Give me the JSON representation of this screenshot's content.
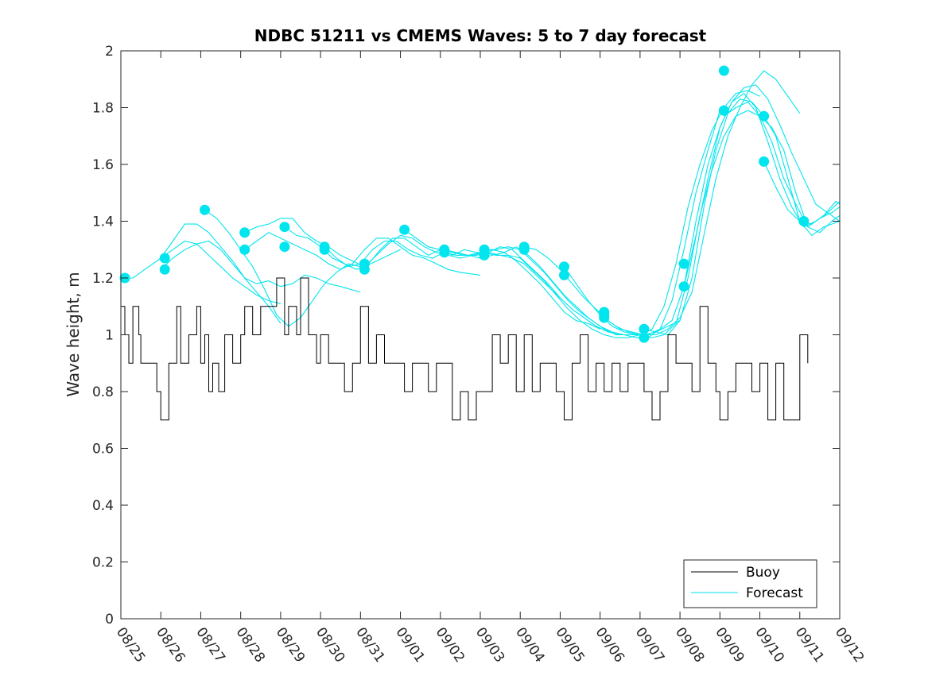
{
  "chart_data": {
    "type": "line",
    "title": "NDBC 51211 vs CMEMS Waves: 5 to 7 day forecast",
    "xlabel": "",
    "ylabel": "Wave height, m",
    "xlim": [
      0,
      18
    ],
    "ylim": [
      0,
      2
    ],
    "x_tick_labels": [
      "08/25",
      "08/26",
      "08/27",
      "08/28",
      "08/29",
      "08/30",
      "08/31",
      "09/01",
      "09/02",
      "09/03",
      "09/04",
      "09/05",
      "09/06",
      "09/07",
      "09/08",
      "09/09",
      "09/10",
      "09/11",
      "09/12"
    ],
    "y_ticks": [
      0,
      0.2,
      0.4,
      0.6,
      0.8,
      1,
      1.2,
      1.4,
      1.6,
      1.8,
      2
    ],
    "y_tick_labels": [
      "0",
      "0.2",
      "0.4",
      "0.6",
      "0.8",
      "1",
      "1.2",
      "1.4",
      "1.6",
      "1.8",
      "2"
    ],
    "grid": false,
    "legend": {
      "position": "bottom-right",
      "entries": [
        {
          "name": "Buoy",
          "color": "#000000"
        },
        {
          "name": "Forecast",
          "color": "#00e5ee"
        }
      ]
    },
    "colors": {
      "buoy": "#000000",
      "forecast": "#00e5ee",
      "marker": "#00e5ee"
    },
    "buoy": {
      "name": "Buoy",
      "x": [
        0,
        0.1,
        0.2,
        0.3,
        0.45,
        0.5,
        0.7,
        0.9,
        1.0,
        1.2,
        1.4,
        1.5,
        1.7,
        1.9,
        2.0,
        2.1,
        2.2,
        2.3,
        2.45,
        2.6,
        2.8,
        3.0,
        3.1,
        3.3,
        3.5,
        3.7,
        3.9,
        4.1,
        4.2,
        4.4,
        4.5,
        4.7,
        4.9,
        5.0,
        5.2,
        5.4,
        5.6,
        5.8,
        6.0,
        6.2,
        6.4,
        6.6,
        6.8,
        6.9,
        7.1,
        7.3,
        7.5,
        7.7,
        7.9,
        8.1,
        8.3,
        8.5,
        8.7,
        8.9,
        9.1,
        9.3,
        9.5,
        9.7,
        9.9,
        10.1,
        10.3,
        10.5,
        10.7,
        10.9,
        11.1,
        11.3,
        11.5,
        11.7,
        11.9,
        12.1,
        12.3,
        12.5,
        12.7,
        12.9,
        13.1,
        13.3,
        13.5,
        13.7,
        13.9,
        14.1,
        14.3,
        14.5,
        14.7,
        14.9,
        15.0,
        15.2,
        15.4,
        15.6,
        15.8,
        16.0,
        16.2,
        16.4,
        16.6,
        16.8,
        17.0,
        17.2
      ],
      "y": [
        1.1,
        1.0,
        0.9,
        1.1,
        1.0,
        0.9,
        0.9,
        0.8,
        0.7,
        0.9,
        1.1,
        0.9,
        1.0,
        1.1,
        0.9,
        1.0,
        0.8,
        0.9,
        0.8,
        1.0,
        0.9,
        1.0,
        1.1,
        1.0,
        1.1,
        1.1,
        1.2,
        1.0,
        1.1,
        1.0,
        1.2,
        1.0,
        0.9,
        1.0,
        0.9,
        0.9,
        0.8,
        0.9,
        1.1,
        0.9,
        1.0,
        0.9,
        0.9,
        0.9,
        0.8,
        0.9,
        0.9,
        0.8,
        0.9,
        0.9,
        0.7,
        0.8,
        0.7,
        0.8,
        0.8,
        1.0,
        0.9,
        1.0,
        0.8,
        1.0,
        0.8,
        0.9,
        0.9,
        0.8,
        0.7,
        0.9,
        1.0,
        0.8,
        0.9,
        0.8,
        0.9,
        0.8,
        0.9,
        0.9,
        0.8,
        0.7,
        0.8,
        1.0,
        0.9,
        0.9,
        0.8,
        1.1,
        0.9,
        0.8,
        0.7,
        0.8,
        0.9,
        0.9,
        0.8,
        0.9,
        0.7,
        0.9,
        0.7,
        0.7,
        1.0,
        0.9
      ]
    },
    "forecasts": [
      {
        "name": "Forecast",
        "x": [
          0,
          0.3,
          0.6,
          1.0,
          1.3,
          1.6,
          1.9,
          2.2,
          2.5,
          2.8,
          3.1,
          3.4,
          3.7,
          4.0
        ],
        "y": [
          1.2,
          1.2,
          1.23,
          1.27,
          1.3,
          1.33,
          1.32,
          1.28,
          1.24,
          1.2,
          1.17,
          1.14,
          1.12,
          1.11
        ]
      },
      {
        "name": "Forecast",
        "x": [
          1.0,
          1.3,
          1.6,
          1.9,
          2.2,
          2.5,
          2.8,
          3.1,
          3.4,
          3.7,
          4.0,
          4.3,
          4.6,
          4.9,
          5.2,
          5.5,
          6.0
        ],
        "y": [
          1.23,
          1.27,
          1.3,
          1.32,
          1.33,
          1.3,
          1.25,
          1.2,
          1.18,
          1.19,
          1.17,
          1.18,
          1.21,
          1.2,
          1.18,
          1.17,
          1.15
        ]
      },
      {
        "name": "Forecast",
        "x": [
          1.0,
          1.3,
          1.6,
          1.9,
          2.2,
          2.5,
          2.8,
          3.1,
          3.4,
          3.7,
          4.0
        ],
        "y": [
          1.27,
          1.33,
          1.39,
          1.39,
          1.36,
          1.31,
          1.26,
          1.2,
          1.15,
          1.1,
          1.04
        ]
      },
      {
        "name": "Forecast",
        "x": [
          2.1,
          2.4,
          2.7,
          3.0,
          3.3,
          3.6,
          3.9,
          4.2,
          4.5,
          4.8,
          5.1,
          5.4,
          5.7,
          6.0
        ],
        "y": [
          1.44,
          1.41,
          1.36,
          1.3,
          1.24,
          1.16,
          1.07,
          1.03,
          1.06,
          1.12,
          1.18,
          1.22,
          1.25,
          1.24
        ]
      },
      {
        "name": "Forecast",
        "x": [
          3.1,
          3.4,
          3.7,
          4.0,
          4.3,
          4.6,
          4.9,
          5.2,
          5.5,
          5.8,
          6.1,
          6.4,
          6.7,
          7.0
        ],
        "y": [
          1.36,
          1.38,
          1.39,
          1.41,
          1.41,
          1.36,
          1.33,
          1.31,
          1.28,
          1.26,
          1.24,
          1.26,
          1.28,
          1.3
        ]
      },
      {
        "name": "Forecast",
        "x": [
          3.1,
          3.4,
          3.7,
          4.0,
          4.3,
          4.6,
          4.9,
          5.2,
          5.5,
          5.8,
          6.1,
          6.4,
          6.7,
          7.0,
          7.3,
          7.6,
          7.9,
          8.2,
          8.5,
          9.0
        ],
        "y": [
          1.3,
          1.33,
          1.36,
          1.34,
          1.32,
          1.3,
          1.28,
          1.25,
          1.23,
          1.25,
          1.3,
          1.34,
          1.34,
          1.31,
          1.28,
          1.27,
          1.25,
          1.23,
          1.22,
          1.21
        ]
      },
      {
        "name": "Forecast",
        "x": [
          4.1,
          4.4,
          4.7,
          5.0,
          5.3,
          5.6,
          5.9,
          6.2,
          6.5,
          6.8,
          7.1,
          7.4,
          7.7,
          8.0,
          8.3,
          8.6,
          8.9,
          9.2,
          9.5,
          9.8,
          10.1,
          10.4,
          10.7,
          11.0
        ],
        "y": [
          1.38,
          1.35,
          1.34,
          1.31,
          1.27,
          1.25,
          1.23,
          1.25,
          1.3,
          1.34,
          1.34,
          1.31,
          1.28,
          1.3,
          1.28,
          1.3,
          1.29,
          1.29,
          1.31,
          1.3,
          1.26,
          1.22,
          1.18,
          1.13
        ]
      },
      {
        "name": "Forecast",
        "x": [
          5.1,
          5.4,
          5.7,
          6.0,
          6.3,
          6.6,
          6.9,
          7.2,
          7.5,
          7.8,
          8.1,
          8.4,
          8.7,
          9.0,
          9.3,
          9.6,
          9.9,
          10.2,
          10.5,
          10.8,
          11.1,
          11.4,
          11.7,
          12.0
        ],
        "y": [
          1.31,
          1.27,
          1.24,
          1.25,
          1.3,
          1.33,
          1.33,
          1.3,
          1.28,
          1.27,
          1.29,
          1.28,
          1.28,
          1.29,
          1.3,
          1.29,
          1.26,
          1.22,
          1.18,
          1.13,
          1.08,
          1.05,
          1.04,
          1.02
        ]
      },
      {
        "name": "Forecast",
        "x": [
          6.1,
          6.4,
          6.7,
          7.0,
          7.3,
          7.6,
          7.9,
          8.2,
          8.5,
          8.8,
          9.1,
          9.4,
          9.7,
          10.0,
          10.3,
          10.6,
          10.9,
          11.2,
          11.5,
          11.8,
          12.1,
          12.4,
          12.7,
          13.0
        ],
        "y": [
          1.24,
          1.28,
          1.32,
          1.35,
          1.34,
          1.31,
          1.29,
          1.28,
          1.27,
          1.28,
          1.29,
          1.28,
          1.28,
          1.27,
          1.23,
          1.19,
          1.14,
          1.09,
          1.05,
          1.02,
          1.0,
          0.99,
          0.99,
          1.0
        ]
      },
      {
        "name": "Forecast",
        "x": [
          7.1,
          7.4,
          7.7,
          8.0,
          8.3,
          8.6,
          8.9,
          9.2,
          9.5,
          9.8,
          10.1,
          10.4,
          10.7,
          11.0,
          11.3,
          11.6,
          11.9,
          12.2,
          12.5,
          12.8,
          13.1,
          13.4,
          13.7,
          14.0
        ],
        "y": [
          1.37,
          1.34,
          1.31,
          1.3,
          1.29,
          1.28,
          1.28,
          1.29,
          1.28,
          1.27,
          1.25,
          1.21,
          1.17,
          1.13,
          1.09,
          1.06,
          1.03,
          1.01,
          1.0,
          1.0,
          1.0,
          1.01,
          1.03,
          1.05
        ]
      },
      {
        "name": "Forecast",
        "x": [
          8.1,
          8.4,
          8.7,
          9.0,
          9.3,
          9.6,
          9.9,
          10.2,
          10.5,
          10.8,
          11.1,
          11.4,
          11.7,
          12.0,
          12.3,
          12.6,
          12.9,
          13.2,
          13.5,
          13.8,
          14.1,
          14.4,
          14.7,
          15.0
        ],
        "y": [
          1.3,
          1.29,
          1.28,
          1.27,
          1.28,
          1.29,
          1.31,
          1.28,
          1.24,
          1.19,
          1.14,
          1.1,
          1.06,
          1.03,
          1.01,
          1.0,
          0.99,
          0.99,
          1.02,
          1.12,
          1.3,
          1.5,
          1.65,
          1.79
        ]
      },
      {
        "name": "Forecast",
        "x": [
          9.1,
          9.4,
          9.7,
          10.0,
          10.3,
          10.6,
          10.9,
          11.2,
          11.5,
          11.8,
          12.1,
          12.4,
          12.7,
          13.0,
          13.3,
          13.6,
          13.9,
          14.2,
          14.5,
          14.8,
          15.1,
          15.4,
          15.7,
          16.0
        ],
        "y": [
          1.3,
          1.3,
          1.31,
          1.3,
          1.26,
          1.22,
          1.17,
          1.12,
          1.08,
          1.05,
          1.02,
          1.0,
          1.0,
          1.0,
          1.02,
          1.1,
          1.25,
          1.45,
          1.6,
          1.72,
          1.8,
          1.85,
          1.86,
          1.84
        ]
      },
      {
        "name": "Forecast",
        "x": [
          10.1,
          10.4,
          10.7,
          11.0,
          11.3,
          11.6,
          11.9,
          12.2,
          12.5,
          12.8,
          13.1,
          13.4,
          13.7,
          14.0,
          14.3,
          14.6,
          14.9,
          15.2,
          15.5,
          15.8,
          16.1,
          16.4,
          16.7,
          17.0
        ],
        "y": [
          1.31,
          1.3,
          1.27,
          1.23,
          1.18,
          1.13,
          1.09,
          1.05,
          1.02,
          1.01,
          1.0,
          1.0,
          1.02,
          1.06,
          1.15,
          1.35,
          1.55,
          1.7,
          1.8,
          1.88,
          1.93,
          1.9,
          1.84,
          1.78
        ]
      },
      {
        "name": "Forecast",
        "x": [
          11.1,
          11.4,
          11.7,
          12.0,
          12.3,
          12.6,
          12.9,
          13.2,
          13.5,
          13.8,
          14.1,
          14.4,
          14.7,
          15.0,
          15.3,
          15.6,
          15.9,
          16.2,
          16.5,
          16.8,
          17.1,
          17.4,
          17.7,
          18.0
        ],
        "y": [
          1.24,
          1.18,
          1.12,
          1.07,
          1.03,
          1.01,
          1.0,
          1.0,
          1.02,
          1.05,
          1.17,
          1.4,
          1.6,
          1.73,
          1.82,
          1.87,
          1.88,
          1.83,
          1.74,
          1.64,
          1.55,
          1.46,
          1.43,
          1.47
        ]
      },
      {
        "name": "Forecast",
        "x": [
          12.1,
          12.4,
          12.7,
          13.0,
          13.3,
          13.6,
          13.9,
          14.2,
          14.5,
          14.8,
          15.1,
          15.4,
          15.7,
          16.0,
          16.3,
          16.6,
          16.9,
          17.2,
          17.5,
          17.8,
          18.0
        ],
        "y": [
          1.06,
          1.03,
          1.01,
          1.0,
          0.99,
          1.0,
          1.04,
          1.2,
          1.42,
          1.58,
          1.7,
          1.77,
          1.79,
          1.77,
          1.73,
          1.65,
          1.5,
          1.38,
          1.36,
          1.4,
          1.42
        ]
      },
      {
        "name": "Forecast",
        "x": [
          13.1,
          13.4,
          13.7,
          14.0,
          14.3,
          14.6,
          14.9,
          15.2,
          15.5,
          15.8,
          16.1,
          16.4,
          16.7,
          17.0,
          17.3,
          17.6,
          18.0
        ],
        "y": [
          1.02,
          1.01,
          1.0,
          1.05,
          1.2,
          1.45,
          1.65,
          1.78,
          1.83,
          1.82,
          1.77,
          1.7,
          1.55,
          1.4,
          1.35,
          1.38,
          1.4
        ]
      },
      {
        "name": "Forecast",
        "x": [
          14.1,
          14.4,
          14.7,
          15.0,
          15.3,
          15.6,
          15.9,
          16.2,
          16.5,
          16.8,
          17.1,
          17.4,
          17.7,
          18.0
        ],
        "y": [
          1.17,
          1.35,
          1.55,
          1.73,
          1.82,
          1.85,
          1.8,
          1.68,
          1.55,
          1.45,
          1.38,
          1.4,
          1.43,
          1.4
        ]
      },
      {
        "name": "Forecast",
        "x": [
          15.1,
          15.4,
          15.7,
          16.0,
          16.3,
          16.6,
          16.9,
          17.2,
          17.5,
          17.8,
          18.0
        ],
        "y": [
          1.77,
          1.8,
          1.82,
          1.77,
          1.68,
          1.55,
          1.46,
          1.38,
          1.41,
          1.43,
          1.45
        ]
      },
      {
        "name": "Forecast",
        "x": [
          16.1,
          16.4,
          16.7,
          17.0,
          17.3,
          17.6,
          17.9,
          18.0
        ],
        "y": [
          1.61,
          1.52,
          1.44,
          1.4,
          1.39,
          1.42,
          1.47,
          1.46
        ]
      }
    ],
    "markers": {
      "x": [
        0.1,
        1.1,
        1.1,
        2.1,
        3.1,
        3.1,
        4.1,
        4.1,
        5.1,
        5.1,
        6.1,
        6.1,
        7.1,
        8.1,
        8.1,
        9.1,
        9.1,
        10.1,
        10.1,
        11.1,
        11.1,
        12.1,
        12.1,
        12.1,
        13.1,
        13.1,
        14.1,
        14.1,
        15.1,
        15.1,
        16.1,
        16.1,
        17.1
      ],
      "y": [
        1.2,
        1.27,
        1.23,
        1.44,
        1.36,
        1.3,
        1.38,
        1.31,
        1.31,
        1.3,
        1.25,
        1.23,
        1.37,
        1.3,
        1.29,
        1.3,
        1.28,
        1.31,
        1.3,
        1.24,
        1.21,
        1.08,
        1.06,
        1.07,
        1.02,
        0.99,
        1.25,
        1.17,
        1.93,
        1.79,
        1.77,
        1.61,
        1.4
      ]
    }
  }
}
